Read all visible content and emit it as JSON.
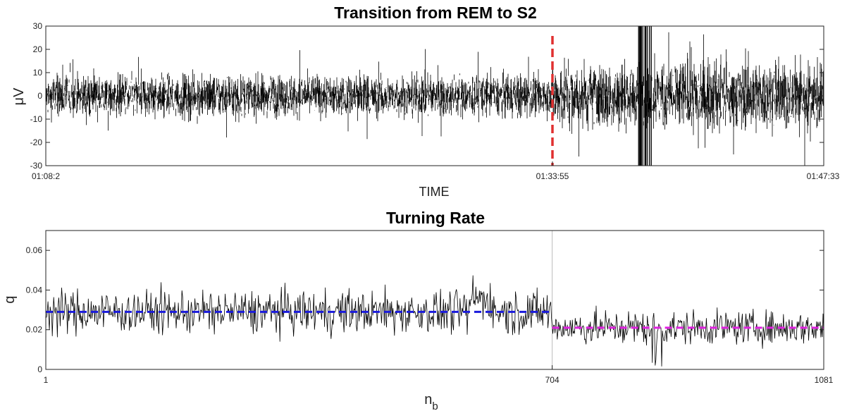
{
  "chart_data": [
    {
      "type": "line",
      "title": "Transition from REM to S2",
      "xlabel": "TIME",
      "ylabel": "μV",
      "ylim": [
        -30,
        30
      ],
      "yticks": [
        -30,
        -20,
        -10,
        0,
        10,
        20,
        30
      ],
      "xticks": [
        "01:08:2",
        "01:33:55",
        "01:47:33"
      ],
      "grid": false,
      "series": [
        {
          "color": "#000000",
          "kind": "dense EEG signal",
          "amplitude_before_marker": 8,
          "amplitude_after_marker": 13
        }
      ],
      "annotations": [
        {
          "type": "vertical-dashed-line",
          "x": "01:33:55",
          "color": "#e03030"
        }
      ]
    },
    {
      "type": "line",
      "title": "Turning Rate",
      "xlabel": "n",
      "xlabel_sub": "b",
      "ylabel": "q",
      "xlim": [
        1,
        1081
      ],
      "ylim": [
        0,
        0.07
      ],
      "yticks": [
        0,
        0.02,
        0.04,
        0.06
      ],
      "yticklabels": [
        "0",
        "0.02",
        "0.04",
        "0.06"
      ],
      "xticks": [
        1,
        704,
        1081
      ],
      "grid": false,
      "series": [
        {
          "color": "#000000",
          "kind": "turning rate per block",
          "mean_before": 0.029,
          "mean_after": 0.021
        }
      ],
      "annotations": [
        {
          "type": "vertical-line",
          "x": 704,
          "color": "#bbbbbb"
        },
        {
          "type": "horizontal-dashed-segment",
          "y": 0.029,
          "x_range": [
            1,
            704
          ],
          "color": "#1a1adc"
        },
        {
          "type": "horizontal-dashed-segment",
          "y": 0.021,
          "x_range": [
            704,
            1081
          ],
          "color": "#e020e0"
        }
      ]
    }
  ]
}
